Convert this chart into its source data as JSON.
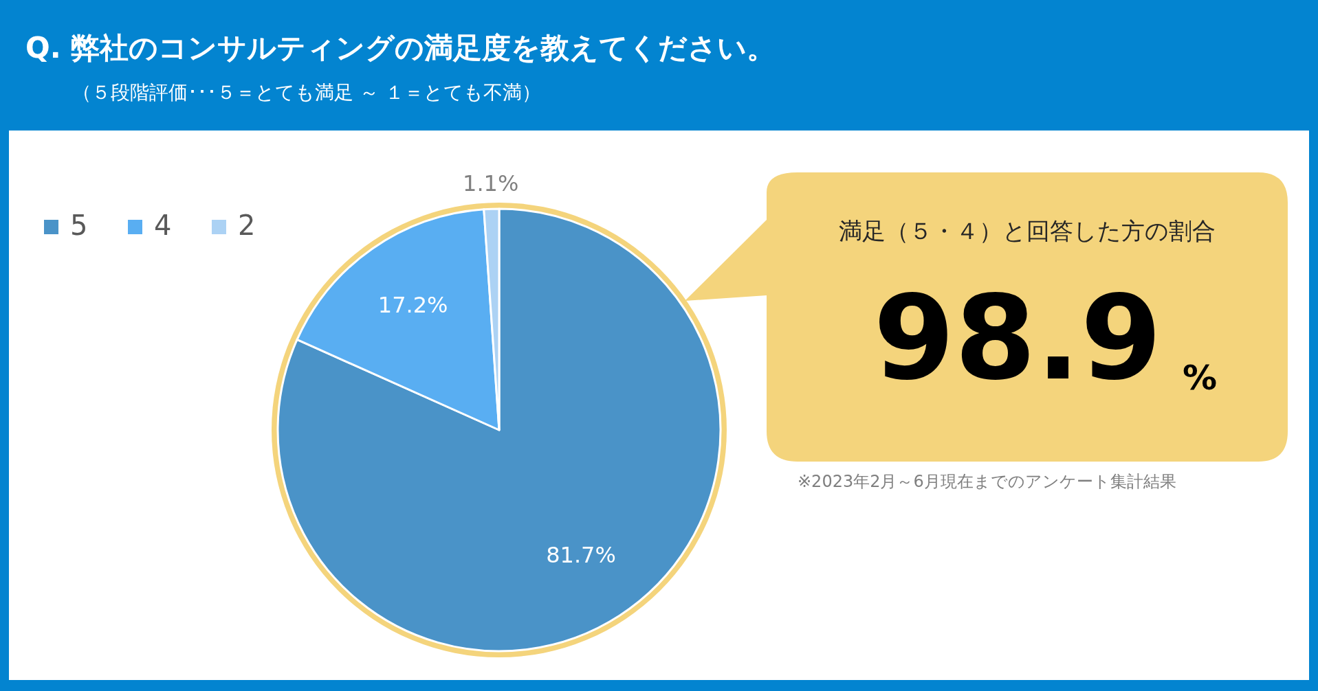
{
  "chart_data": {
    "type": "pie",
    "title": "Q. 弊社のコンサルティングの満足度を教えてください。",
    "subtitle": "（５段階評価･･･５＝とても満足 ～ １＝とても不満）",
    "categories": [
      "5",
      "4",
      "2"
    ],
    "values": [
      81.7,
      17.2,
      1.1
    ],
    "colors": [
      "#4a93c8",
      "#59aef2",
      "#acd2f4"
    ],
    "value_labels": [
      "81.7%",
      "17.2%",
      "1.1%"
    ],
    "legend": "top left",
    "annotations": [
      "満足（５・４）と回答した方の割合",
      "98.9",
      "%",
      "※2023年2月～6月現在までのアンケート集計結果"
    ]
  }
}
